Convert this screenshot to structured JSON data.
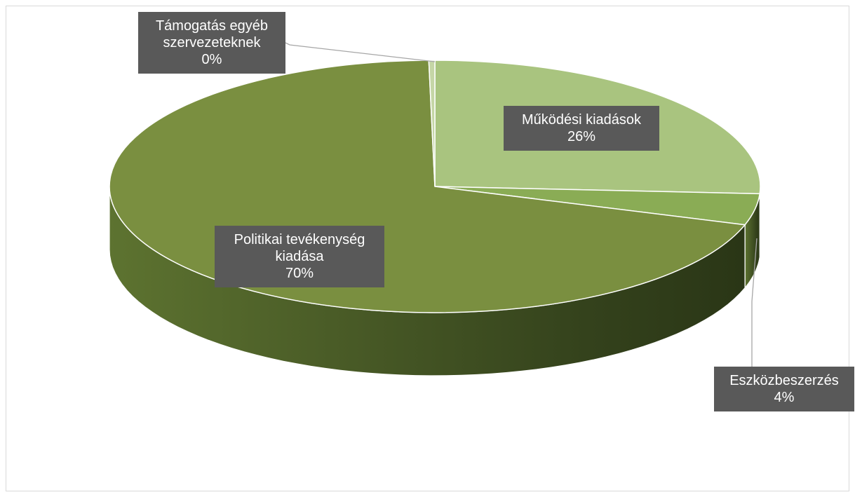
{
  "chart_data": {
    "type": "pie",
    "style": "3d",
    "categories": [
      "Működési kiadások",
      "Eszközbeszerzés",
      "Politikai tevékenység kiadása",
      "Támogatás egyéb szervezeteknek"
    ],
    "values": [
      26,
      4,
      70,
      0.3
    ],
    "labels": [
      {
        "lines": [
          "Működési kiadások",
          "26%"
        ]
      },
      {
        "lines": [
          "Eszközbeszerzés",
          "4%"
        ]
      },
      {
        "lines": [
          "Politikai tevékenység",
          "kiadása",
          "70%"
        ]
      },
      {
        "lines": [
          "Támogatás egyéb",
          "szervezeteknek",
          "0%"
        ]
      }
    ],
    "colors": [
      "#a9c47f",
      "#8aac55",
      "#7a8f40",
      "#c5d6a6"
    ],
    "side_colors": [
      "#4a5c2a",
      "#3a4a20",
      "#566b2e",
      "#7d8f55"
    ],
    "label_box_color": "#595959"
  }
}
